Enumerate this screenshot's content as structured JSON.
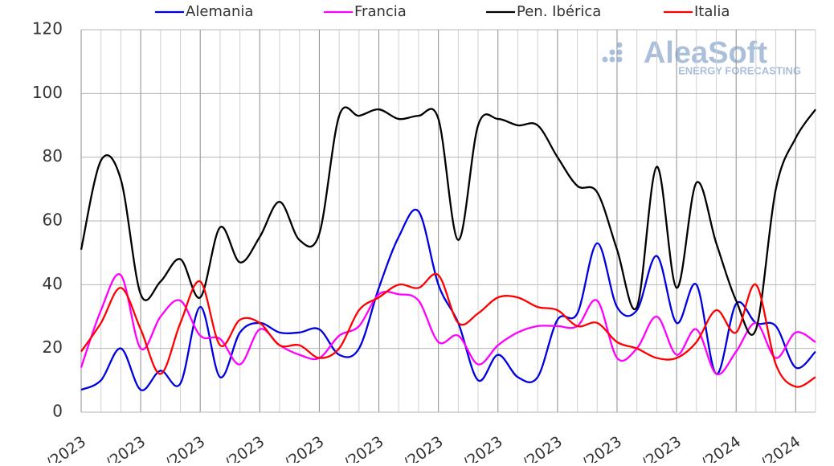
{
  "chart_data": {
    "type": "line",
    "logo": {
      "name": "AleaSoft",
      "tagline": "ENERGY FORECASTING"
    },
    "categories": [
      "/2023",
      null,
      null,
      "/2023",
      null,
      null,
      "/2023",
      null,
      null,
      "/2023",
      null,
      null,
      "/2023",
      null,
      null,
      "/2023",
      null,
      null,
      "/2023",
      null,
      null,
      "/2023",
      null,
      null,
      "/2023",
      null,
      null,
      "/2023",
      null,
      null,
      "/2023",
      null,
      null,
      "/2024",
      null,
      null,
      "/2024",
      null
    ],
    "series": [
      {
        "name": "Alemania",
        "color": "#0000e0",
        "values": [
          7,
          10,
          20,
          7,
          13,
          9,
          33,
          11,
          25,
          28,
          25,
          25,
          26,
          18,
          20,
          39,
          55,
          63,
          40,
          28,
          10,
          18,
          11,
          11,
          29,
          31,
          53,
          33,
          32,
          49,
          28,
          40,
          12,
          34,
          28,
          27,
          14,
          19
        ]
      },
      {
        "name": "Francia",
        "color": "#ff00ff",
        "values": [
          14,
          32,
          43,
          20,
          30,
          35,
          24,
          23,
          15,
          26,
          21,
          18,
          17,
          24,
          27,
          37,
          37,
          35,
          22,
          24,
          15,
          21,
          25,
          27,
          27,
          27,
          35,
          17,
          20,
          30,
          18,
          26,
          12,
          19,
          28,
          17,
          25,
          22
        ]
      },
      {
        "name": "Pen. Ibérica",
        "color": "#000000",
        "values": [
          51,
          79,
          73,
          37,
          41,
          48,
          36,
          58,
          47,
          55,
          66,
          54,
          56,
          93,
          93,
          95,
          92,
          93,
          92,
          54,
          90,
          92,
          90,
          90,
          80,
          71,
          69,
          51,
          33,
          77,
          39,
          72,
          53,
          35,
          26,
          70,
          86,
          95
        ]
      },
      {
        "name": "Italia",
        "color": "#ff0000",
        "values": [
          19,
          28,
          39,
          26,
          12,
          28,
          41,
          21,
          29,
          28,
          21,
          21,
          17,
          20,
          32,
          36,
          40,
          39,
          43,
          28,
          31,
          36,
          36,
          33,
          32,
          27,
          28,
          22,
          20,
          17,
          17,
          22,
          32,
          25,
          40,
          15,
          8,
          11
        ]
      }
    ],
    "ylim": [
      0,
      120
    ],
    "yticks": [
      0,
      20,
      40,
      60,
      80,
      100,
      120
    ],
    "grid": true,
    "legend": "top"
  }
}
